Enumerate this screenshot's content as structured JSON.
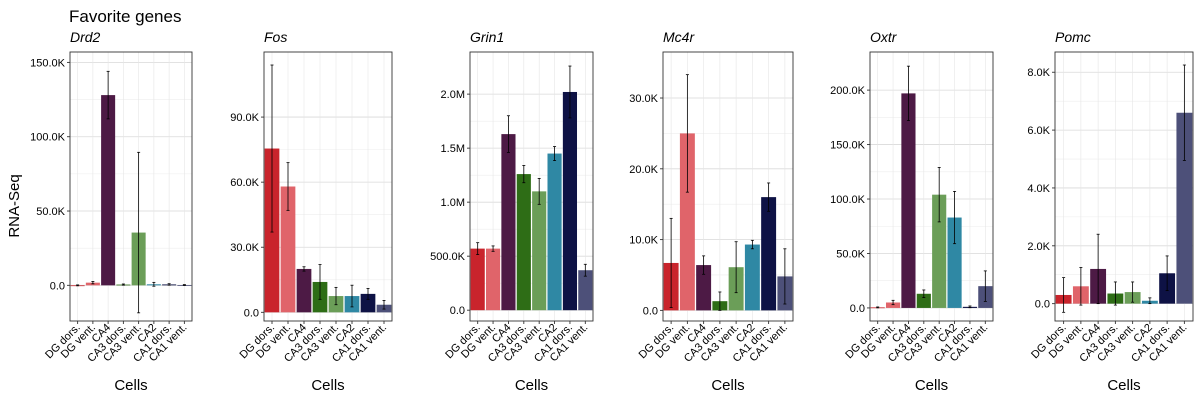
{
  "title": "Favorite genes",
  "ylabel": "RNA-Seq",
  "xlabel": "Cells",
  "categories": [
    "DG dors.",
    "DG vent.",
    "CA4",
    "CA3 dors.",
    "CA3 vent.",
    "CA2",
    "CA1 dors.",
    "CA1 vent."
  ],
  "colors": [
    "#c9242c",
    "#e0646a",
    "#4d1a45",
    "#2e6d16",
    "#6b9e58",
    "#2f88a4",
    "#0e1245",
    "#4d5079"
  ],
  "chart_data": [
    {
      "type": "bar",
      "title": "Drd2",
      "xlabel": "Cells",
      "ylabel": "RNA-Seq",
      "ylim": [
        -24000,
        157000
      ],
      "yticks": [
        0,
        50000,
        100000,
        150000
      ],
      "ytick_labels": [
        "0.0",
        "50.0K",
        "100.0K",
        "150.0K"
      ],
      "categories": [
        "DG dors.",
        "DG vent.",
        "CA4",
        "CA3 dors.",
        "CA3 vent.",
        "CA2",
        "CA1 dors.",
        "CA1 vent."
      ],
      "values": [
        0,
        1800,
        128000,
        500,
        35500,
        700,
        600,
        200
      ],
      "errors": [
        300,
        800,
        16000,
        400,
        54000,
        1300,
        500,
        300
      ]
    },
    {
      "type": "bar",
      "title": "Fos",
      "xlabel": "Cells",
      "ylabel": "",
      "ylim": [
        -4000,
        120000
      ],
      "yticks": [
        0,
        30000,
        60000,
        90000
      ],
      "ytick_labels": [
        "0.0",
        "30.0K",
        "60.0K",
        "90.0K"
      ],
      "categories": [
        "DG dors.",
        "DG vent.",
        "CA4",
        "CA3 dors.",
        "CA3 vent.",
        "CA2",
        "CA1 dors.",
        "CA1 vent."
      ],
      "values": [
        75500,
        58000,
        20000,
        14000,
        7500,
        7500,
        8500,
        3500
      ],
      "errors": [
        38500,
        11000,
        1000,
        8000,
        4000,
        5000,
        2500,
        2000
      ]
    },
    {
      "type": "bar",
      "title": "Grin1",
      "xlabel": "Cells",
      "ylabel": "",
      "ylim": [
        -100000,
        2390000
      ],
      "yticks": [
        0,
        500000,
        1000000,
        1500000,
        2000000
      ],
      "ytick_labels": [
        "0.0",
        "500.0K",
        "1.0M",
        "1.5M",
        "2.0M"
      ],
      "categories": [
        "DG dors.",
        "DG vent.",
        "CA4",
        "CA3 dors.",
        "CA3 vent.",
        "CA2",
        "CA1 dors.",
        "CA1 vent."
      ],
      "values": [
        570000,
        570000,
        1630000,
        1260000,
        1100000,
        1450000,
        2020000,
        370000
      ],
      "errors": [
        55000,
        25000,
        170000,
        80000,
        120000,
        65000,
        240000,
        55000
      ]
    },
    {
      "type": "bar",
      "title": "Mc4r",
      "xlabel": "Cells",
      "ylabel": "",
      "ylim": [
        -1500,
        36500
      ],
      "yticks": [
        0,
        10000,
        20000,
        30000
      ],
      "ytick_labels": [
        "0.0",
        "10.0K",
        "20.0K",
        "30.0K"
      ],
      "categories": [
        "DG dors.",
        "DG vent.",
        "CA4",
        "CA3 dors.",
        "CA3 vent.",
        "CA2",
        "CA1 dors.",
        "CA1 vent."
      ],
      "values": [
        6700,
        25000,
        6400,
        1300,
        6100,
        9300,
        16000,
        4800
      ],
      "errors": [
        6300,
        8300,
        1300,
        1300,
        3600,
        600,
        2000,
        3900
      ]
    },
    {
      "type": "bar",
      "title": "Oxtr",
      "xlabel": "Cells",
      "ylabel": "",
      "ylim": [
        -12000,
        235000
      ],
      "yticks": [
        0,
        50000,
        100000,
        150000,
        200000
      ],
      "ytick_labels": [
        "0.0",
        "50.0K",
        "100.0K",
        "150.0K",
        "200.0K"
      ],
      "categories": [
        "DG dors.",
        "DG vent.",
        "CA4",
        "CA3 dors.",
        "CA3 vent.",
        "CA2",
        "CA1 dors.",
        "CA1 vent."
      ],
      "values": [
        500,
        5000,
        197000,
        13000,
        104000,
        83000,
        1000,
        20000
      ],
      "errors": [
        400,
        2000,
        25000,
        3500,
        25000,
        24000,
        800,
        14000
      ]
    },
    {
      "type": "bar",
      "title": "Pomc",
      "xlabel": "Cells",
      "ylabel": "",
      "ylim": [
        -600,
        8700
      ],
      "yticks": [
        0,
        2000,
        4000,
        6000,
        8000
      ],
      "ytick_labels": [
        "0.0",
        "2.0K",
        "4.0K",
        "6.0K",
        "8.0K"
      ],
      "categories": [
        "DG dors.",
        "DG vent.",
        "CA4",
        "CA3 dors.",
        "CA3 vent.",
        "CA2",
        "CA1 dors.",
        "CA1 vent."
      ],
      "values": [
        300,
        600,
        1200,
        350,
        400,
        100,
        1050,
        6600
      ],
      "errors": [
        600,
        650,
        1200,
        400,
        350,
        100,
        600,
        1650
      ]
    }
  ]
}
